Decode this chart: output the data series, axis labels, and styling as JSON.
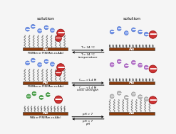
{
  "background_color": "#f5f5f5",
  "au_color": "#8B3A0A",
  "au_label": "Au",
  "solution_label": "solution",
  "row1_left_label": "PNIPAm or P(NIPAm-co-AAc)",
  "row2_left_label": "PNIPAm or P(NIPAm-co-AAc)",
  "row3_left_label": "PAA or P(NIPAm-co-AAc)",
  "arrow1_top": "T > 34 °C",
  "arrow1_bot": "T < 34 °C",
  "arrow1_label": "temperature",
  "arrow2_top": "Cₕₑₕₗ >1.4 M",
  "arrow2_bot": "Cₙₐₕₗ <1.4 M",
  "arrow2_label": "ionic strength",
  "arrow3_top": "pH > 7",
  "arrow3_bot": "pH < 7",
  "arrow3_label": "pH",
  "blue_fc": "#7799ee",
  "blue_ec": "#4466bb",
  "red_fc": "#cc3333",
  "red_ec": "#991111",
  "purple_fc": "#bb77cc",
  "purple_ec": "#8844aa",
  "green_fc": "#55aa55",
  "green_ec": "#227722",
  "gray_fc": "#bbbbbb",
  "gray_ec": "#888888",
  "polymer_color": "#666666",
  "polymer_lw": 0.55
}
